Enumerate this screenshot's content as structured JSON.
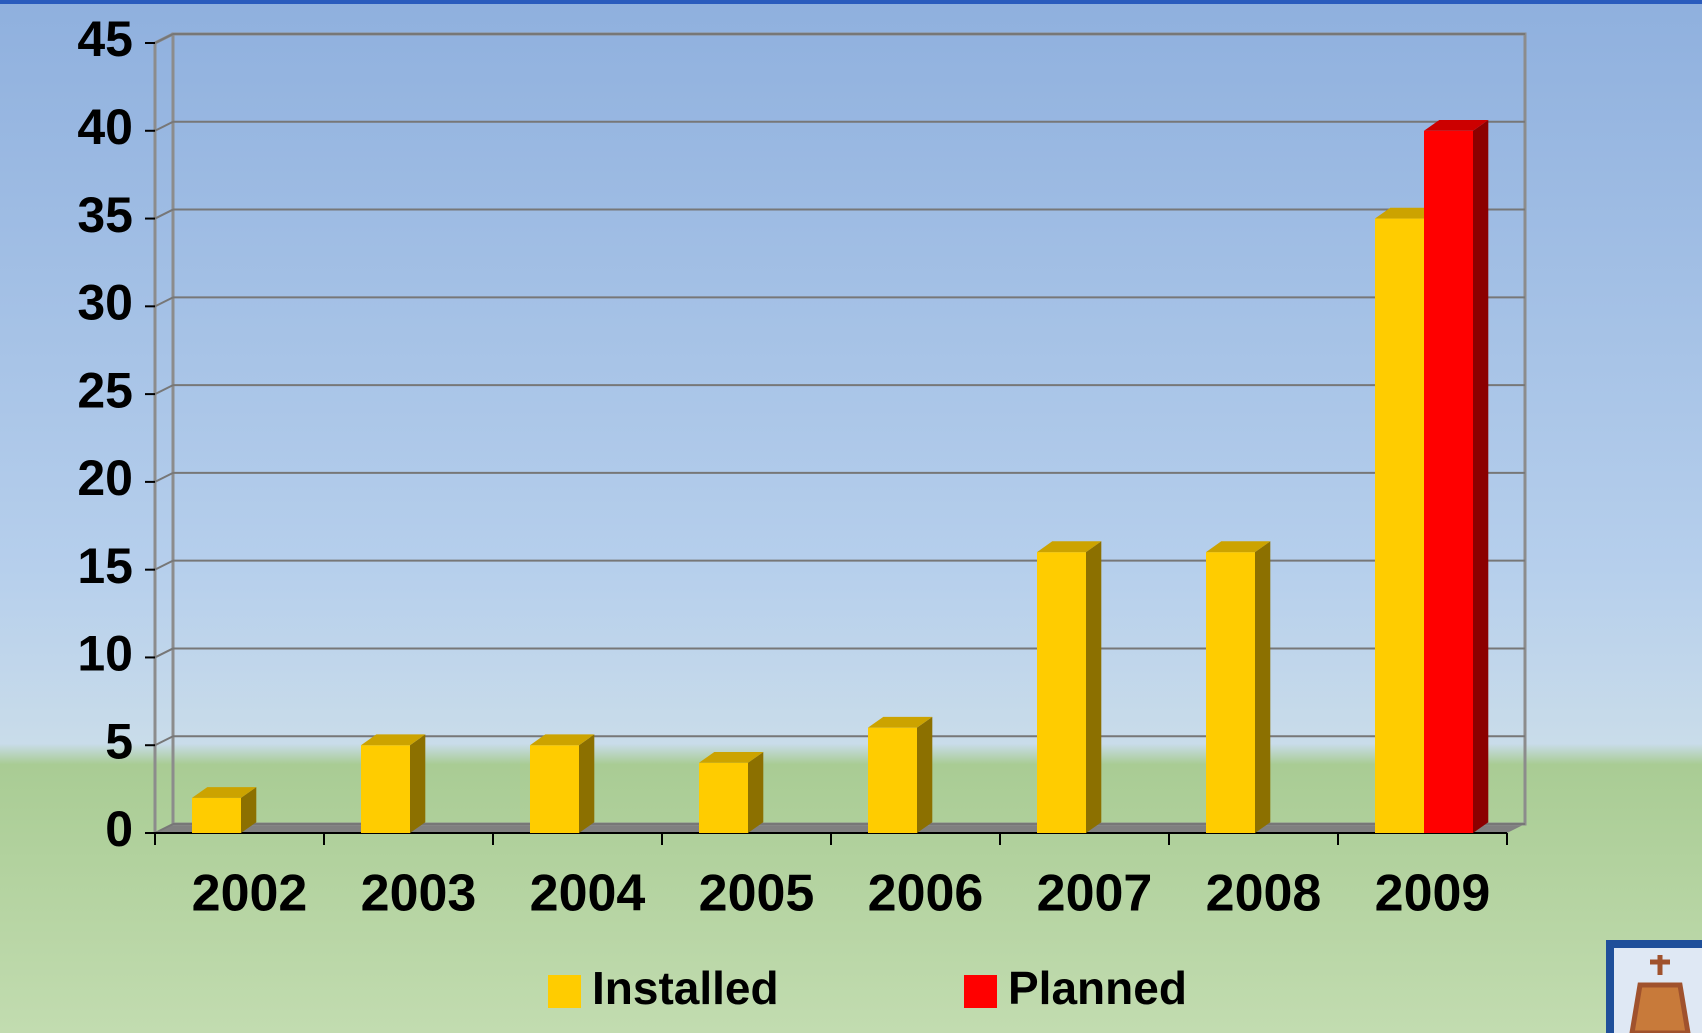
{
  "chart_data": {
    "type": "bar3d",
    "categories": [
      "2002",
      "2003",
      "2004",
      "2005",
      "2006",
      "2007",
      "2008",
      "2009"
    ],
    "series": [
      {
        "name": "Installed",
        "color": "#ffcc00",
        "values": [
          2,
          5,
          5,
          4,
          6,
          16,
          16,
          35
        ]
      },
      {
        "name": "Planned",
        "color": "#ff0000",
        "values": [
          null,
          null,
          null,
          null,
          null,
          null,
          null,
          40
        ]
      }
    ],
    "ylim": [
      0,
      45
    ],
    "yticks": [
      0,
      5,
      10,
      15,
      20,
      25,
      30,
      35,
      40,
      45
    ],
    "grid": true
  }
}
